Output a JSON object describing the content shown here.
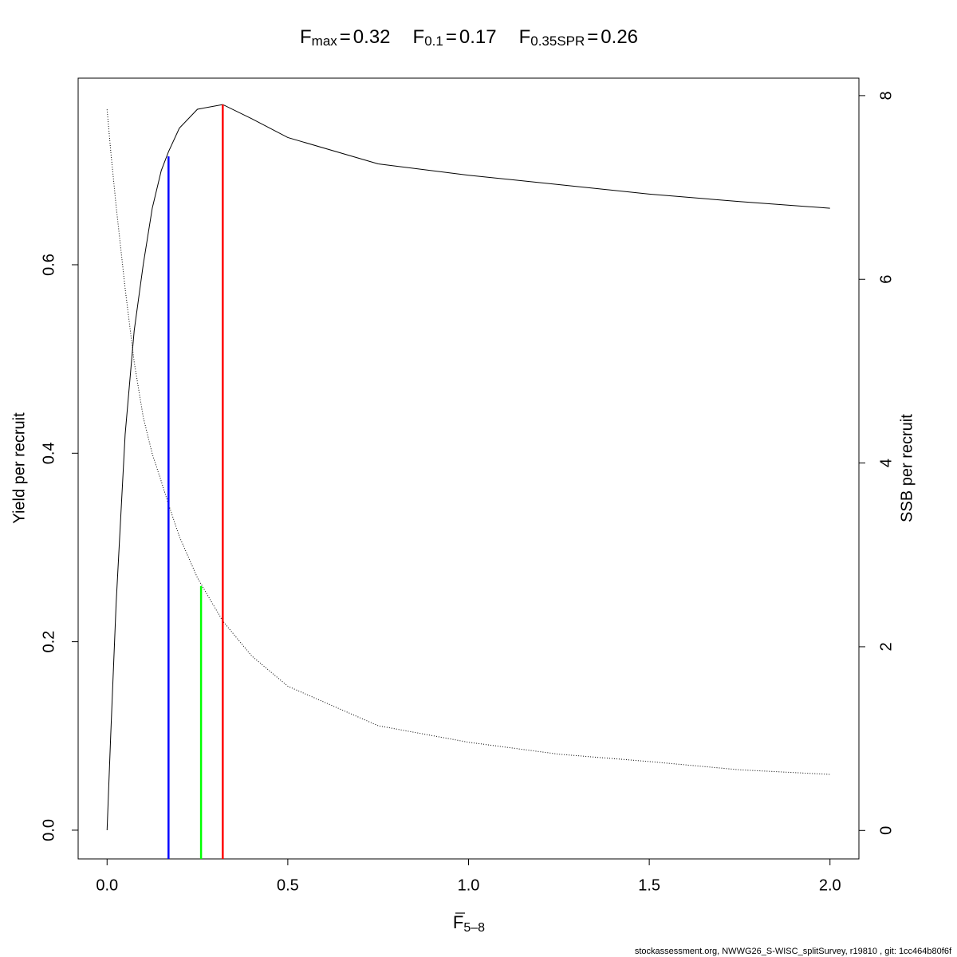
{
  "chart_data": {
    "type": "line",
    "reference_lines": [
      {
        "label": {
          "base": "F",
          "sub": "max"
        },
        "x": 0.32,
        "y": 0.77,
        "axis": "y",
        "color": "#ff0000"
      },
      {
        "label": {
          "base": "F",
          "sub": "0.1"
        },
        "x": 0.17,
        "y": 0.715,
        "axis": "y",
        "color": "#0000ff"
      },
      {
        "label": {
          "base": "F",
          "sub": "0.35SPR"
        },
        "x": 0.26,
        "y": 2.66,
        "axis": "y2",
        "color": "#00ff00"
      }
    ],
    "separator": "=",
    "xlabel": {
      "base": "F",
      "sub": "5–8"
    },
    "ylabel": "Yield per recruit",
    "y2label": "SSB per recruit",
    "footer": "stockassessment.org, NWWG26_S-WISC_splitSurvey, r19810 , git: 1cc464b80f6f",
    "x": [
      0,
      0.01,
      0.025,
      0.05,
      0.075,
      0.1,
      0.125,
      0.15,
      0.17,
      0.2,
      0.25,
      0.32,
      0.4,
      0.5,
      0.75,
      1.0,
      1.25,
      1.5,
      1.75,
      2.0
    ],
    "series": [
      {
        "color": "#000000",
        "line_style": "solid",
        "axis": "y",
        "values": [
          0,
          0.1,
          0.24,
          0.42,
          0.53,
          0.6,
          0.66,
          0.7,
          0.72,
          0.745,
          0.765,
          0.77,
          0.755,
          0.735,
          0.707,
          0.695,
          0.685,
          0.675,
          0.667,
          0.66
        ]
      },
      {
        "color": "#000000",
        "line_style": "dotted",
        "axis": "y2",
        "values": [
          7.85,
          7.4,
          6.8,
          5.9,
          5.1,
          4.5,
          4.1,
          3.8,
          3.55,
          3.2,
          2.75,
          2.28,
          1.9,
          1.57,
          1.14,
          0.96,
          0.83,
          0.75,
          0.66,
          0.61
        ]
      }
    ],
    "xlim": [
      -0.08,
      2.08
    ],
    "xticks": [
      {
        "value": 0,
        "label": "0.0"
      },
      {
        "value": 0.5,
        "label": "0.5"
      },
      {
        "value": 1,
        "label": "1.0"
      },
      {
        "value": 1.5,
        "label": "1.5"
      },
      {
        "value": 2,
        "label": "2.0"
      }
    ],
    "ylim": [
      -0.0305,
      0.798
    ],
    "yticks": [
      {
        "value": 0,
        "label": "0.0"
      },
      {
        "value": 0.2,
        "label": "0.2"
      },
      {
        "value": 0.4,
        "label": "0.4"
      },
      {
        "value": 0.6,
        "label": "0.6"
      }
    ],
    "y2lim": [
      -0.31,
      8.19
    ],
    "y2ticks": [
      0,
      2,
      4,
      6,
      8
    ]
  }
}
